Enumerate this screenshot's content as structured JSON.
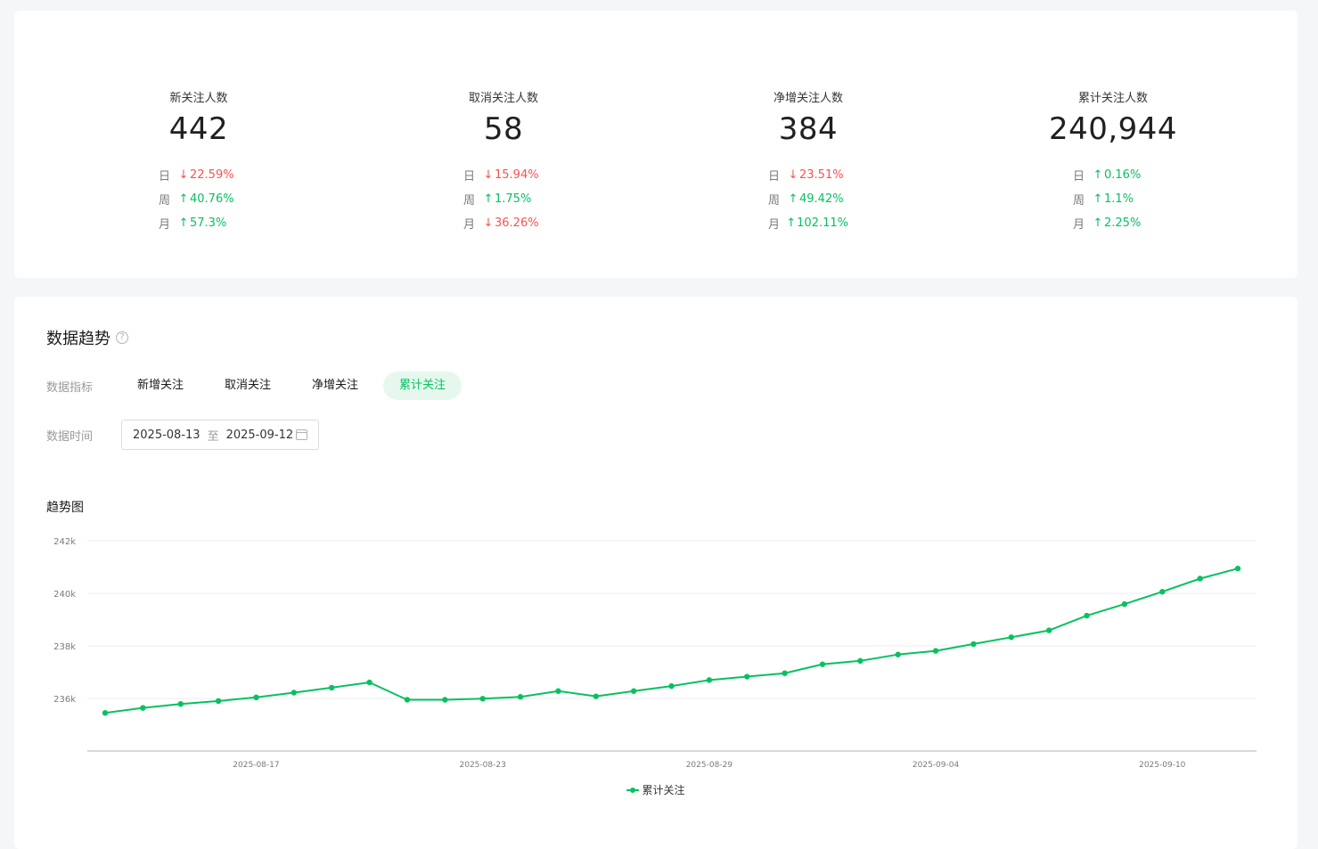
{
  "stats": [
    {
      "label": "新关注人数",
      "value": "442",
      "changes": [
        {
          "period": "日",
          "direction": "down",
          "value": "22.59%"
        },
        {
          "period": "周",
          "direction": "up",
          "value": "40.76%"
        },
        {
          "period": "月",
          "direction": "up",
          "value": "57.3%"
        }
      ]
    },
    {
      "label": "取消关注人数",
      "value": "58",
      "changes": [
        {
          "period": "日",
          "direction": "down",
          "value": "15.94%"
        },
        {
          "period": "周",
          "direction": "up",
          "value": "1.75%"
        },
        {
          "period": "月",
          "direction": "down",
          "value": "36.26%"
        }
      ]
    },
    {
      "label": "净增关注人数",
      "value": "384",
      "changes": [
        {
          "period": "日",
          "direction": "down",
          "value": "23.51%"
        },
        {
          "period": "周",
          "direction": "up",
          "value": "49.42%"
        },
        {
          "period": "月",
          "direction": "up",
          "value": "102.11%"
        }
      ]
    },
    {
      "label": "累计关注人数",
      "value": "240,944",
      "changes": [
        {
          "period": "日",
          "direction": "up",
          "value": "0.16%"
        },
        {
          "period": "周",
          "direction": "up",
          "value": "1.1%"
        },
        {
          "period": "月",
          "direction": "up",
          "value": "2.25%"
        }
      ]
    }
  ],
  "arrows": {
    "up": "↑",
    "down": "↓"
  },
  "colors": {
    "accent": "#07c160",
    "up": "#07c160",
    "down": "#fa5151",
    "grid": "#ececec",
    "axis": "#d8d8d8"
  },
  "trend": {
    "title": "数据趋势",
    "help_icon": "?",
    "metric_label": "数据指标",
    "metrics": [
      {
        "label": "新增关注",
        "active": false
      },
      {
        "label": "取消关注",
        "active": false
      },
      {
        "label": "净增关注",
        "active": false
      },
      {
        "label": "累计关注",
        "active": true
      }
    ],
    "time_label": "数据时间",
    "date_start": "2025-08-13",
    "date_sep": "至",
    "date_end": "2025-09-12",
    "chart_title": "趋势图"
  },
  "chart_data": {
    "type": "line",
    "x": [
      "2025-08-13",
      "2025-08-14",
      "2025-08-15",
      "2025-08-16",
      "2025-08-17",
      "2025-08-18",
      "2025-08-19",
      "2025-08-20",
      "2025-08-21",
      "2025-08-22",
      "2025-08-23",
      "2025-08-24",
      "2025-08-25",
      "2025-08-26",
      "2025-08-27",
      "2025-08-28",
      "2025-08-29",
      "2025-08-30",
      "2025-08-31",
      "2025-09-01",
      "2025-09-02",
      "2025-09-03",
      "2025-09-04",
      "2025-09-05",
      "2025-09-06",
      "2025-09-07",
      "2025-09-08",
      "2025-09-09",
      "2025-09-10",
      "2025-09-11",
      "2025-09-12"
    ],
    "series": [
      {
        "name": "累计关注",
        "values": [
          235450,
          235640,
          235790,
          235900,
          236040,
          236220,
          236410,
          236610,
          235950,
          235950,
          235990,
          236060,
          236280,
          236080,
          236280,
          236470,
          236700,
          236830,
          236960,
          237300,
          237430,
          237670,
          237810,
          238070,
          238330,
          238590,
          239150,
          239590,
          240060,
          240560,
          240944
        ]
      }
    ],
    "ylim": [
      234000,
      242000
    ],
    "yticks": [
      236000,
      238000,
      240000,
      242000
    ],
    "ytick_labels": [
      "236k",
      "238k",
      "240k",
      "242k"
    ],
    "xticks": [
      "2025-08-17",
      "2025-08-23",
      "2025-08-29",
      "2025-09-04",
      "2025-09-10"
    ],
    "grid": true,
    "legend": "bottom-center"
  }
}
